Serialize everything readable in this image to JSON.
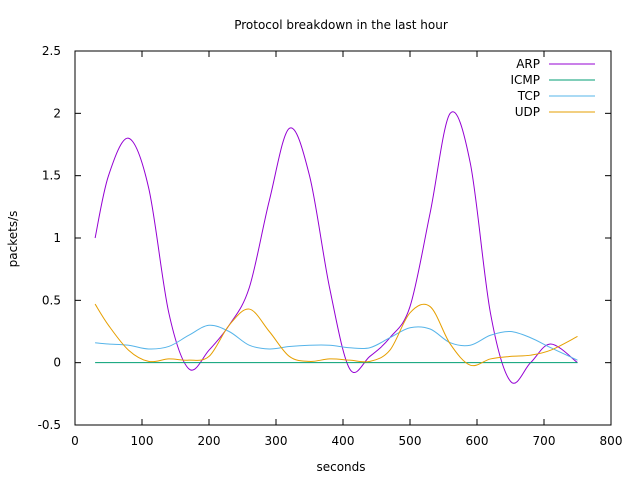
{
  "chart_data": {
    "type": "line",
    "title": "Protocol breakdown in the last hour",
    "xlabel": "seconds",
    "ylabel": "packets/s",
    "xlim": [
      0,
      800
    ],
    "ylim": [
      -0.5,
      2.5
    ],
    "xticks": [
      0,
      100,
      200,
      300,
      400,
      500,
      600,
      700,
      800
    ],
    "yticks": [
      -0.5,
      0,
      0.5,
      1,
      1.5,
      2,
      2.5
    ],
    "xtick_labels": [
      "0",
      "100",
      "200",
      "300",
      "400",
      "500",
      "600",
      "700",
      "800"
    ],
    "ytick_labels": [
      "-0.5",
      "0",
      "0.5",
      "1",
      "1.5",
      "2",
      "2.5"
    ],
    "grid": false,
    "legend": "top-right",
    "x": [
      30,
      50,
      80,
      110,
      140,
      170,
      200,
      230,
      260,
      290,
      320,
      350,
      380,
      410,
      440,
      470,
      500,
      530,
      560,
      590,
      620,
      650,
      680,
      710,
      750
    ],
    "series": [
      {
        "name": "ARP",
        "color": "#9400d3",
        "values": [
          1.0,
          1.5,
          1.8,
          1.4,
          0.4,
          -0.05,
          0.1,
          0.3,
          0.6,
          1.3,
          1.88,
          1.5,
          0.6,
          -0.05,
          0.05,
          0.2,
          0.45,
          1.2,
          2.0,
          1.6,
          0.4,
          -0.15,
          0.0,
          0.15,
          0.0
        ]
      },
      {
        "name": "ICMP",
        "color": "#009e73",
        "values": [
          0,
          0,
          0,
          0,
          0,
          0,
          0,
          0,
          0,
          0,
          0,
          0,
          0,
          0,
          0,
          0,
          0,
          0,
          0,
          0,
          0,
          0,
          0,
          0,
          0
        ]
      },
      {
        "name": "TCP",
        "color": "#56b4e9",
        "values": [
          0.16,
          0.15,
          0.14,
          0.11,
          0.13,
          0.22,
          0.3,
          0.25,
          0.14,
          0.11,
          0.13,
          0.14,
          0.14,
          0.12,
          0.12,
          0.2,
          0.28,
          0.27,
          0.16,
          0.14,
          0.22,
          0.25,
          0.2,
          0.12,
          0.02
        ]
      },
      {
        "name": "UDP",
        "color": "#e69f00",
        "values": [
          0.47,
          0.3,
          0.1,
          0.01,
          0.03,
          0.02,
          0.05,
          0.3,
          0.43,
          0.25,
          0.05,
          0.01,
          0.03,
          0.02,
          0.01,
          0.1,
          0.4,
          0.45,
          0.15,
          -0.02,
          0.03,
          0.05,
          0.06,
          0.1,
          0.21
        ]
      }
    ]
  }
}
